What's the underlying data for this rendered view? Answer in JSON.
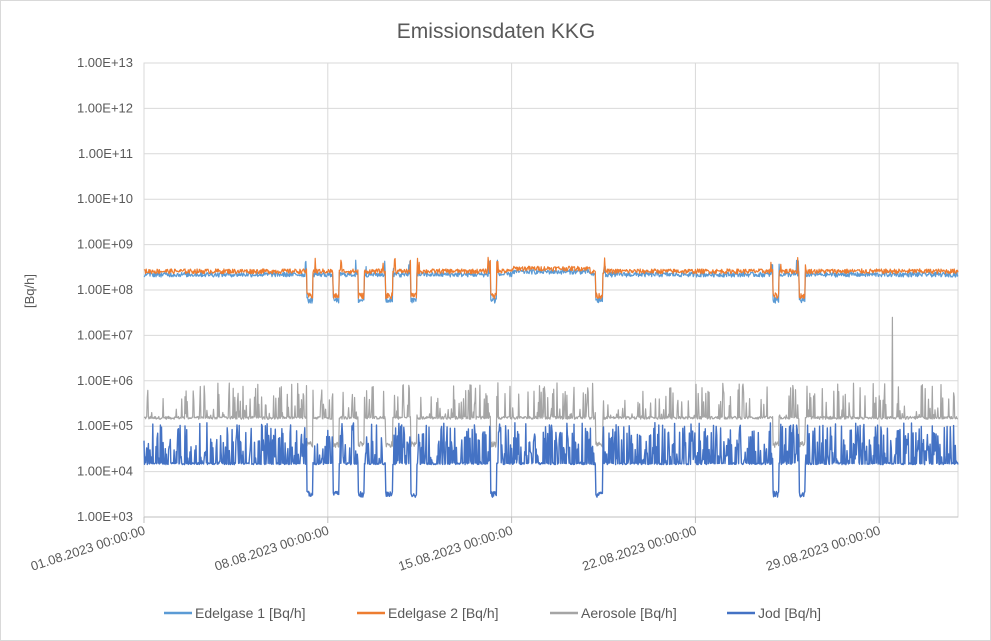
{
  "chart_data": {
    "type": "line",
    "title": "Emissionsdaten KKG",
    "xlabel": "",
    "ylabel": "[Bq/h]",
    "y_scale": "log",
    "ylim": [
      1000,
      10000000000000
    ],
    "y_tick_values": [
      1000,
      10000,
      100000,
      1000000,
      10000000,
      100000000,
      1000000000,
      10000000000,
      100000000000,
      1000000000000,
      10000000000000
    ],
    "y_tick_labels": [
      "1.00E+03",
      "1.00E+04",
      "1.00E+05",
      "1.00E+06",
      "1.00E+07",
      "1.00E+08",
      "1.00E+09",
      "1.00E+10",
      "1.00E+11",
      "1.00E+12",
      "1.00E+13"
    ],
    "xlim": [
      "2023-08-01 00:00",
      "2023-09-01 00:00"
    ],
    "x_tick_values": [
      "2023-08-01",
      "2023-08-08",
      "2023-08-15",
      "2023-08-22",
      "2023-08-29"
    ],
    "x_tick_labels": [
      "01.08.2023 00:00:00",
      "08.08.2023 00:00:00",
      "15.08.2023 00:00:00",
      "22.08.2023 00:00:00",
      "29.08.2023 00:00:00"
    ],
    "grid": true,
    "legend_position": "bottom",
    "dips": [
      {
        "start": "2023-08-07 05:00",
        "end": "2023-08-07 10:00"
      },
      {
        "start": "2023-08-08 05:00",
        "end": "2023-08-08 10:00"
      },
      {
        "start": "2023-08-09 04:00",
        "end": "2023-08-09 09:00"
      },
      {
        "start": "2023-08-10 05:00",
        "end": "2023-08-10 11:00"
      },
      {
        "start": "2023-08-11 04:00",
        "end": "2023-08-11 09:00"
      },
      {
        "start": "2023-08-14 05:00",
        "end": "2023-08-14 10:00"
      },
      {
        "start": "2023-08-18 05:00",
        "end": "2023-08-18 11:00"
      },
      {
        "start": "2023-08-24 23:00",
        "end": "2023-08-25 04:00"
      },
      {
        "start": "2023-08-25 23:00",
        "end": "2023-08-26 04:00"
      }
    ],
    "series": [
      {
        "name": "Edelgase 1 [Bq/h]",
        "color": "#5b9bd5",
        "baseline": 220000000,
        "dip_value": 60000000
      },
      {
        "name": "Edelgase 2 [Bq/h]",
        "color": "#ed7d31",
        "baseline": 260000000,
        "dip_value": 75000000
      },
      {
        "name": "Aerosole [Bq/h]",
        "color": "#a5a5a5",
        "baseline": 150000,
        "peak_max": 900000,
        "dip_value": 40000,
        "spike": {
          "time": "2023-08-29 12:00",
          "value": 25000000
        }
      },
      {
        "name": "Jod [Bq/h]",
        "color": "#4472c4",
        "baseline": 15000,
        "peak_max": 120000,
        "dip_value": 3200
      }
    ]
  }
}
